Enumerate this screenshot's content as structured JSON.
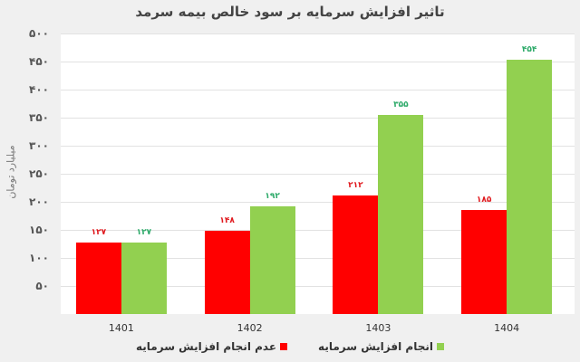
{
  "chart_data": {
    "type": "bar",
    "title": "تاثیر افزایش سرمایه بر سود خالص بیمه سرمد",
    "xlabel": "",
    "ylabel": "میلیارد تومان",
    "ylim": [
      0,
      500
    ],
    "grid": true,
    "legend_position": "bottom",
    "categories": [
      "1401",
      "1402",
      "1403",
      "1404"
    ],
    "y_ticks": [
      {
        "value": 500,
        "label": "۵۰۰"
      },
      {
        "value": 450,
        "label": "۴۵۰"
      },
      {
        "value": 400,
        "label": "۴۰۰"
      },
      {
        "value": 350,
        "label": "۳۵۰"
      },
      {
        "value": 300,
        "label": "۳۰۰"
      },
      {
        "value": 250,
        "label": "۲۵۰"
      },
      {
        "value": 200,
        "label": "۲۰۰"
      },
      {
        "value": 150,
        "label": "۱۵۰"
      },
      {
        "value": 100,
        "label": "۱۰۰"
      },
      {
        "value": 50,
        "label": "۵۰"
      }
    ],
    "series": [
      {
        "name": "عدم انجام افزایش سرمایه",
        "color": "#ff0000",
        "label_color": "#e0191e",
        "values": [
          127,
          148,
          212,
          185
        ],
        "data_labels": [
          "۱۲۷",
          "۱۴۸",
          "۲۱۲",
          "۱۸۵"
        ]
      },
      {
        "name": "انجام افزایش سرمایه",
        "color": "#92d050",
        "label_color": "#2eaa6a",
        "values": [
          127,
          192,
          355,
          454
        ],
        "data_labels": [
          "۱۲۷",
          "۱۹۲",
          "۳۵۵",
          "۴۵۴"
        ]
      }
    ]
  }
}
